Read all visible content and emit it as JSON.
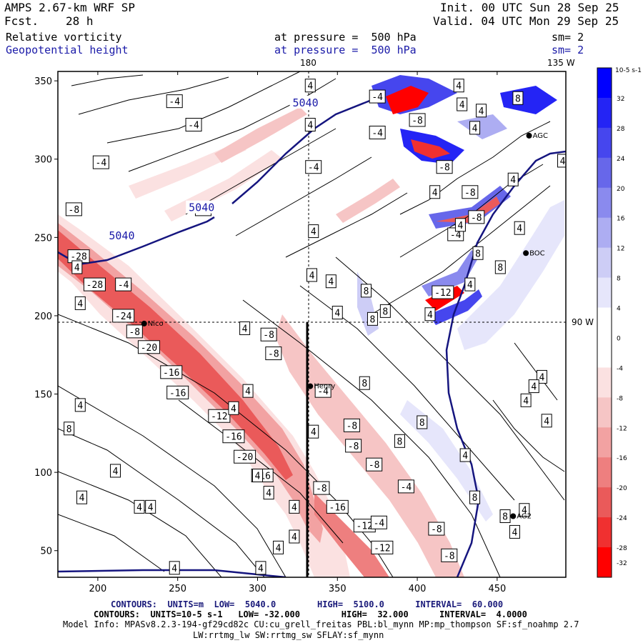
{
  "header": {
    "model": "AMPS 2.67-km WRF SP",
    "fcst_label": "Fcst.",
    "fcst_value": "28 h",
    "init": "Init. 00 UTC Sun 28 Sep 25",
    "valid": "Valid. 04 UTC Mon 29 Sep 25",
    "field1_name": "Relative vorticity",
    "field1_level": "at pressure =  500 hPa",
    "field1_sm": "sm= 2",
    "field2_name": "Geopotential height",
    "field2_level": "at pressure =  500 hPa",
    "field2_sm": "sm= 2"
  },
  "lon_labels": {
    "top": "180",
    "top_right": "135 W",
    "right": "90 W"
  },
  "axes": {
    "x_ticks": [
      "200",
      "250",
      "300",
      "350",
      "400",
      "450"
    ],
    "y_ticks": [
      "350",
      "300",
      "250",
      "200",
      "150",
      "100",
      "50"
    ],
    "xlim": [
      175,
      493
    ],
    "ylim": [
      33,
      356
    ]
  },
  "colorbar": {
    "unit_label": "10-5 s-1",
    "labels": [
      "32",
      "28",
      "24",
      "20",
      "16",
      "12",
      "8",
      "4",
      "0",
      "-4",
      "-8",
      "-12",
      "-16",
      "-20",
      "-24",
      "-28",
      "-32"
    ],
    "colors": [
      "#0000ff",
      "#2424f5",
      "#4646ee",
      "#6767ea",
      "#8a8aee",
      "#adadf2",
      "#cdcdf6",
      "#e6e6fb",
      "#ffffff",
      "#ffffff",
      "#fbe1e1",
      "#f6c5c5",
      "#f2a2a2",
      "#ee7f7f",
      "#ea5a5a",
      "#f03030",
      "#ff0000"
    ]
  },
  "stations": [
    {
      "name": "Henry",
      "x": 333,
      "y": 155
    },
    {
      "name": "Nico",
      "x": 229,
      "y": 195
    },
    {
      "name": "AGC",
      "x": 470,
      "y": 315
    },
    {
      "name": "BOC",
      "x": 468,
      "y": 240
    },
    {
      "name": "AG2",
      "x": 460,
      "y": 72
    }
  ],
  "height_labels": [
    {
      "text": "5040",
      "x": 215,
      "y": 251
    },
    {
      "text": "5040",
      "x": 265,
      "y": 269
    },
    {
      "text": "5040",
      "x": 330,
      "y": 336
    }
  ],
  "vort_labels": [
    {
      "t": "-8",
      "x": 185,
      "y": 268
    },
    {
      "t": "-28",
      "x": 188,
      "y": 238
    },
    {
      "t": "-28",
      "x": 198,
      "y": 220
    },
    {
      "t": "-4",
      "x": 216,
      "y": 220
    },
    {
      "t": "-24",
      "x": 216,
      "y": 200
    },
    {
      "t": "-8",
      "x": 223,
      "y": 190
    },
    {
      "t": "-20",
      "x": 232,
      "y": 180
    },
    {
      "t": "-16",
      "x": 246,
      "y": 164
    },
    {
      "t": "-16",
      "x": 250,
      "y": 151
    },
    {
      "t": "-12",
      "x": 276,
      "y": 136
    },
    {
      "t": "-16",
      "x": 285,
      "y": 123
    },
    {
      "t": "-20",
      "x": 292,
      "y": 110
    },
    {
      "t": "-16",
      "x": 303,
      "y": 98
    },
    {
      "t": "-8",
      "x": 307,
      "y": 188
    },
    {
      "t": "-8",
      "x": 310,
      "y": 176
    },
    {
      "t": "-4",
      "x": 341,
      "y": 152
    },
    {
      "t": "-8",
      "x": 340,
      "y": 90
    },
    {
      "t": "-16",
      "x": 350,
      "y": 78
    },
    {
      "t": "-8",
      "x": 359,
      "y": 130
    },
    {
      "t": "-8",
      "x": 360,
      "y": 117
    },
    {
      "t": "-12",
      "x": 367,
      "y": 66
    },
    {
      "t": "-12",
      "x": 378,
      "y": 52
    },
    {
      "t": "-4",
      "x": 376,
      "y": 68
    },
    {
      "t": "-8",
      "x": 373,
      "y": 105
    },
    {
      "t": "-4",
      "x": 393,
      "y": 91
    },
    {
      "t": "-8",
      "x": 412,
      "y": 64
    },
    {
      "t": "-8",
      "x": 420,
      "y": 47
    },
    {
      "t": "-12",
      "x": 416,
      "y": 215
    },
    {
      "t": "-8",
      "x": 417,
      "y": 295
    },
    {
      "t": "-8",
      "x": 433,
      "y": 279
    },
    {
      "t": "-8",
      "x": 437,
      "y": 263
    },
    {
      "t": "-4",
      "x": 424,
      "y": 252
    },
    {
      "t": "-4",
      "x": 248,
      "y": 337
    },
    {
      "t": "-4",
      "x": 260,
      "y": 322
    },
    {
      "t": "-4",
      "x": 202,
      "y": 298
    },
    {
      "t": "-8",
      "x": 266,
      "y": 268
    },
    {
      "t": "-4",
      "x": 335,
      "y": 295
    },
    {
      "t": "-4",
      "x": 375,
      "y": 340
    },
    {
      "t": "-4",
      "x": 375,
      "y": 317
    },
    {
      "t": "-8",
      "x": 400,
      "y": 325
    }
  ],
  "pos_labels": [
    {
      "t": "4",
      "x": 187,
      "y": 231
    },
    {
      "t": "4",
      "x": 189,
      "y": 208
    },
    {
      "t": "4",
      "x": 189,
      "y": 143
    },
    {
      "t": "8",
      "x": 182,
      "y": 128
    },
    {
      "t": "4",
      "x": 211,
      "y": 101
    },
    {
      "t": "4",
      "x": 190,
      "y": 84
    },
    {
      "t": "4",
      "x": 226,
      "y": 78
    },
    {
      "t": "4",
      "x": 233,
      "y": 78
    },
    {
      "t": "4",
      "x": 248,
      "y": 39
    },
    {
      "t": "4",
      "x": 285,
      "y": 141
    },
    {
      "t": "4",
      "x": 294,
      "y": 152
    },
    {
      "t": "4",
      "x": 292,
      "y": 192
    },
    {
      "t": "4",
      "x": 300,
      "y": 98
    },
    {
      "t": "4",
      "x": 307,
      "y": 87
    },
    {
      "t": "4",
      "x": 302,
      "y": 39
    },
    {
      "t": "4",
      "x": 313,
      "y": 52
    },
    {
      "t": "4",
      "x": 323,
      "y": 78
    },
    {
      "t": "4",
      "x": 323,
      "y": 59
    },
    {
      "t": "4",
      "x": 335,
      "y": 126
    },
    {
      "t": "4",
      "x": 335,
      "y": 254
    },
    {
      "t": "4",
      "x": 333,
      "y": 322
    },
    {
      "t": "4",
      "x": 333,
      "y": 347
    },
    {
      "t": "4",
      "x": 334,
      "y": 226
    },
    {
      "t": "4",
      "x": 346,
      "y": 222
    },
    {
      "t": "4",
      "x": 350,
      "y": 202
    },
    {
      "t": "8",
      "x": 367,
      "y": 157
    },
    {
      "t": "8",
      "x": 368,
      "y": 216
    },
    {
      "t": "8",
      "x": 372,
      "y": 198
    },
    {
      "t": "8",
      "x": 380,
      "y": 203
    },
    {
      "t": "8",
      "x": 389,
      "y": 120
    },
    {
      "t": "8",
      "x": 403,
      "y": 132
    },
    {
      "t": "4",
      "x": 408,
      "y": 201
    },
    {
      "t": "4",
      "x": 411,
      "y": 279
    },
    {
      "t": "4",
      "x": 427,
      "y": 258
    },
    {
      "t": "8",
      "x": 436,
      "y": 84
    },
    {
      "t": "8",
      "x": 438,
      "y": 240
    },
    {
      "t": "8",
      "x": 452,
      "y": 231
    },
    {
      "t": "4",
      "x": 433,
      "y": 220
    },
    {
      "t": "8",
      "x": 455,
      "y": 72
    },
    {
      "t": "4",
      "x": 461,
      "y": 62
    },
    {
      "t": "4",
      "x": 467,
      "y": 76
    },
    {
      "t": "4",
      "x": 468,
      "y": 146
    },
    {
      "t": "4",
      "x": 481,
      "y": 133
    },
    {
      "t": "4",
      "x": 478,
      "y": 161
    },
    {
      "t": "4",
      "x": 473,
      "y": 155
    },
    {
      "t": "4",
      "x": 464,
      "y": 256
    },
    {
      "t": "4",
      "x": 430,
      "y": 111
    },
    {
      "t": "4",
      "x": 426,
      "y": 347
    },
    {
      "t": "4",
      "x": 428,
      "y": 335
    },
    {
      "t": "8",
      "x": 463,
      "y": 339
    },
    {
      "t": "4",
      "x": 491,
      "y": 299
    },
    {
      "t": "4",
      "x": 436,
      "y": 320
    },
    {
      "t": "4",
      "x": 440,
      "y": 331
    },
    {
      "t": "4",
      "x": 460,
      "y": 287
    }
  ],
  "footer": {
    "line1": "CONTOURS:  UNITS=m  LOW=  5040.0        HIGH=  5100.0      INTERVAL=  60.000",
    "line2": "CONTOURS:  UNITS=10-5 s-1   LOW= -32.000        HIGH=  32.000      INTERVAL=  4.0000",
    "line3": "Model Info: MPASv8.2.3-194-gf29cd82c CU:cu_grell_freitas PBL:bl_mynn MP:mp_thompson SF:sf_noahmp 2.7",
    "line4": "LW:rrtmg_lw SW:rrtmg_sw SFLAY:sf_mynn"
  }
}
